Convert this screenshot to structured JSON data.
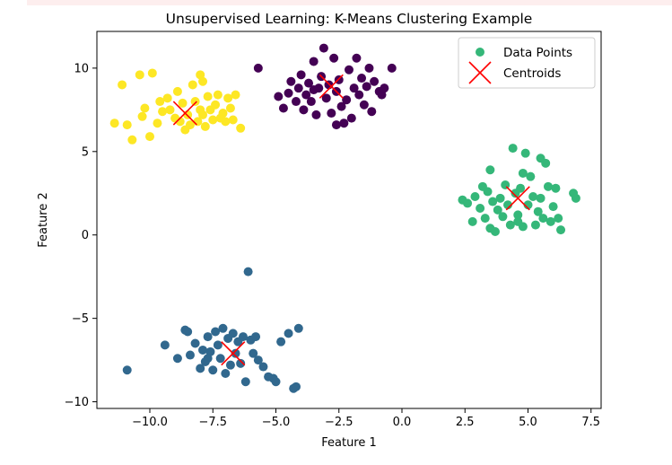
{
  "chart_data": {
    "type": "scatter",
    "title": "Unsupervised Learning: K-Means Clustering Example",
    "xlabel": "Feature 1",
    "ylabel": "Feature 2",
    "xlim": [
      -12.1,
      7.9
    ],
    "ylim": [
      -10.4,
      12.2
    ],
    "xticks": [
      -10.0,
      -7.5,
      -5.0,
      -2.5,
      0.0,
      2.5,
      5.0,
      7.5
    ],
    "xtick_labels": [
      "−10.0",
      "−7.5",
      "−5.0",
      "−2.5",
      "0.0",
      "2.5",
      "5.0",
      "7.5"
    ],
    "yticks": [
      -10,
      -5,
      0,
      5,
      10
    ],
    "ytick_labels": [
      "−10",
      "−5",
      "0",
      "5",
      "10"
    ],
    "legend_position": "top-right",
    "clusters": [
      {
        "color": "#fde725",
        "points": [
          [
            -11.4,
            6.7
          ],
          [
            -10.9,
            6.6
          ],
          [
            -10.7,
            5.7
          ],
          [
            -11.1,
            9.0
          ],
          [
            -10.4,
            9.6
          ],
          [
            -10.2,
            7.6
          ],
          [
            -9.9,
            9.7
          ],
          [
            -10.0,
            5.9
          ],
          [
            -9.7,
            6.7
          ],
          [
            -9.5,
            7.4
          ],
          [
            -9.3,
            8.2
          ],
          [
            -9.2,
            7.5
          ],
          [
            -9.0,
            7.0
          ],
          [
            -8.9,
            8.6
          ],
          [
            -8.8,
            6.8
          ],
          [
            -8.7,
            7.9
          ],
          [
            -8.6,
            6.3
          ],
          [
            -8.5,
            7.2
          ],
          [
            -8.4,
            6.6
          ],
          [
            -8.3,
            9.0
          ],
          [
            -8.2,
            8.0
          ],
          [
            -8.1,
            6.8
          ],
          [
            -8.0,
            9.6
          ],
          [
            -7.9,
            9.2
          ],
          [
            -7.9,
            7.2
          ],
          [
            -7.8,
            6.5
          ],
          [
            -7.7,
            8.3
          ],
          [
            -7.6,
            7.5
          ],
          [
            -7.5,
            6.9
          ],
          [
            -7.4,
            7.8
          ],
          [
            -7.3,
            8.4
          ],
          [
            -7.2,
            7.0
          ],
          [
            -7.1,
            7.3
          ],
          [
            -7.0,
            6.8
          ],
          [
            -6.9,
            8.2
          ],
          [
            -6.8,
            7.6
          ],
          [
            -6.7,
            6.9
          ],
          [
            -6.6,
            8.4
          ],
          [
            -6.4,
            6.4
          ],
          [
            -10.3,
            7.1
          ],
          [
            -9.6,
            8.0
          ],
          [
            -8.0,
            7.5
          ]
        ],
        "centroid": [
          -8.6,
          7.3
        ]
      },
      {
        "color": "#440154",
        "points": [
          [
            -5.7,
            10.0
          ],
          [
            -4.9,
            8.3
          ],
          [
            -4.7,
            7.6
          ],
          [
            -4.5,
            8.5
          ],
          [
            -4.4,
            9.2
          ],
          [
            -4.2,
            8.0
          ],
          [
            -4.1,
            8.8
          ],
          [
            -4.0,
            9.6
          ],
          [
            -3.9,
            7.5
          ],
          [
            -3.8,
            8.4
          ],
          [
            -3.7,
            9.1
          ],
          [
            -3.6,
            8.0
          ],
          [
            -3.5,
            10.4
          ],
          [
            -3.4,
            7.2
          ],
          [
            -3.3,
            8.8
          ],
          [
            -3.2,
            9.5
          ],
          [
            -3.1,
            11.2
          ],
          [
            -3.0,
            8.2
          ],
          [
            -2.9,
            9.0
          ],
          [
            -2.8,
            7.3
          ],
          [
            -2.7,
            10.6
          ],
          [
            -2.6,
            8.6
          ],
          [
            -2.5,
            9.3
          ],
          [
            -2.4,
            7.7
          ],
          [
            -2.3,
            6.7
          ],
          [
            -2.2,
            8.1
          ],
          [
            -2.1,
            9.9
          ],
          [
            -2.0,
            7.0
          ],
          [
            -1.9,
            8.8
          ],
          [
            -1.8,
            10.6
          ],
          [
            -1.7,
            8.4
          ],
          [
            -1.6,
            9.4
          ],
          [
            -1.5,
            7.8
          ],
          [
            -1.4,
            8.9
          ],
          [
            -1.3,
            10.0
          ],
          [
            -1.2,
            7.4
          ],
          [
            -1.1,
            9.2
          ],
          [
            -0.9,
            8.6
          ],
          [
            -0.8,
            8.4
          ],
          [
            -0.7,
            8.8
          ],
          [
            -0.4,
            10.0
          ],
          [
            -2.6,
            6.6
          ],
          [
            -3.5,
            8.7
          ]
        ],
        "centroid": [
          -2.8,
          8.9
        ]
      },
      {
        "color": "#35b779",
        "points": [
          [
            2.4,
            2.1
          ],
          [
            2.6,
            1.9
          ],
          [
            2.8,
            0.8
          ],
          [
            2.9,
            2.3
          ],
          [
            3.1,
            1.6
          ],
          [
            3.2,
            2.9
          ],
          [
            3.3,
            1.0
          ],
          [
            3.4,
            2.6
          ],
          [
            3.5,
            0.4
          ],
          [
            3.5,
            3.9
          ],
          [
            3.6,
            2.0
          ],
          [
            3.7,
            0.2
          ],
          [
            3.8,
            1.5
          ],
          [
            3.9,
            2.2
          ],
          [
            4.1,
            3.0
          ],
          [
            4.2,
            1.8
          ],
          [
            4.3,
            0.6
          ],
          [
            4.4,
            5.2
          ],
          [
            4.5,
            2.5
          ],
          [
            4.6,
            1.2
          ],
          [
            4.7,
            2.8
          ],
          [
            4.8,
            0.5
          ],
          [
            4.8,
            3.7
          ],
          [
            4.9,
            4.9
          ],
          [
            5.0,
            1.8
          ],
          [
            5.1,
            3.5
          ],
          [
            5.2,
            2.3
          ],
          [
            5.3,
            0.6
          ],
          [
            5.4,
            1.4
          ],
          [
            5.5,
            2.2
          ],
          [
            5.5,
            4.6
          ],
          [
            5.6,
            1.0
          ],
          [
            5.7,
            4.3
          ],
          [
            5.8,
            2.9
          ],
          [
            6.0,
            1.7
          ],
          [
            6.1,
            2.8
          ],
          [
            6.2,
            1.0
          ],
          [
            6.3,
            0.3
          ],
          [
            6.8,
            2.5
          ],
          [
            6.9,
            2.2
          ],
          [
            4.0,
            1.1
          ],
          [
            4.6,
            0.8
          ],
          [
            5.9,
            0.8
          ]
        ],
        "centroid": [
          4.6,
          2.2
        ]
      },
      {
        "color": "#31688e",
        "points": [
          [
            -10.9,
            -8.1
          ],
          [
            -9.4,
            -6.6
          ],
          [
            -8.9,
            -7.4
          ],
          [
            -8.5,
            -5.8
          ],
          [
            -8.4,
            -7.2
          ],
          [
            -8.2,
            -6.5
          ],
          [
            -8.0,
            -8.0
          ],
          [
            -7.9,
            -6.9
          ],
          [
            -7.8,
            -7.6
          ],
          [
            -7.7,
            -6.1
          ],
          [
            -7.6,
            -7.0
          ],
          [
            -7.5,
            -8.1
          ],
          [
            -7.4,
            -5.8
          ],
          [
            -7.3,
            -6.6
          ],
          [
            -7.2,
            -7.4
          ],
          [
            -7.1,
            -5.6
          ],
          [
            -7.0,
            -8.3
          ],
          [
            -6.9,
            -6.2
          ],
          [
            -6.8,
            -7.8
          ],
          [
            -6.7,
            -5.9
          ],
          [
            -6.6,
            -7.1
          ],
          [
            -6.5,
            -6.4
          ],
          [
            -6.4,
            -7.7
          ],
          [
            -6.3,
            -6.1
          ],
          [
            -6.2,
            -8.8
          ],
          [
            -6.1,
            -2.2
          ],
          [
            -6.0,
            -6.3
          ],
          [
            -5.9,
            -7.1
          ],
          [
            -5.8,
            -6.1
          ],
          [
            -5.7,
            -7.5
          ],
          [
            -5.5,
            -7.9
          ],
          [
            -5.3,
            -8.5
          ],
          [
            -5.1,
            -8.6
          ],
          [
            -5.0,
            -8.8
          ],
          [
            -4.8,
            -6.4
          ],
          [
            -4.5,
            -5.9
          ],
          [
            -4.3,
            -9.2
          ],
          [
            -4.2,
            -9.1
          ],
          [
            -4.1,
            -5.6
          ],
          [
            -8.6,
            -5.7
          ],
          [
            -7.7,
            -7.4
          ]
        ],
        "centroid": [
          -6.7,
          -7.1
        ]
      }
    ],
    "legend": [
      {
        "label": "Data Points",
        "marker": "circle",
        "color": "#35b779"
      },
      {
        "label": "Centroids",
        "marker": "x",
        "color": "#ff0000"
      }
    ]
  }
}
